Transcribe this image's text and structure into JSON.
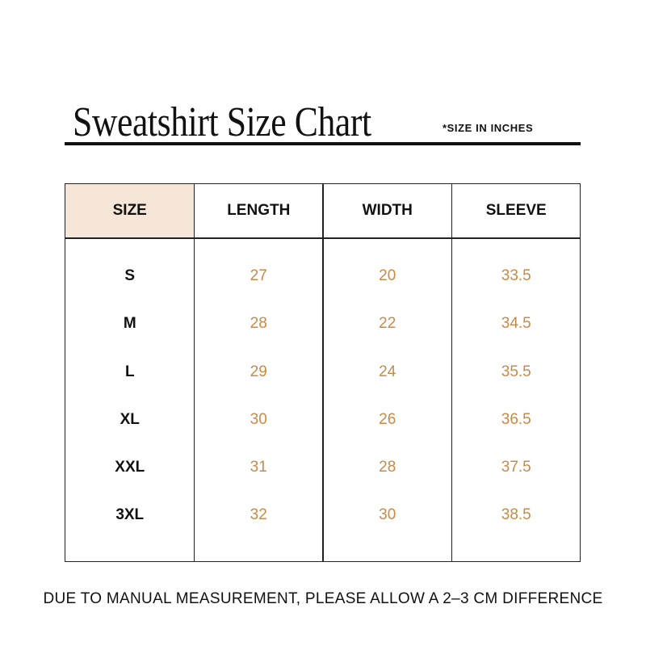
{
  "header": {
    "title": "Sweatshirt Size Chart",
    "note": "*SIZE IN INCHES"
  },
  "table": {
    "columns": [
      "SIZE",
      "LENGTH",
      "WIDTH",
      "SLEEVE"
    ],
    "rows": [
      [
        "S",
        "27",
        "20",
        "33.5"
      ],
      [
        "M",
        "28",
        "22",
        "34.5"
      ],
      [
        "L",
        "29",
        "24",
        "35.5"
      ],
      [
        "XL",
        "30",
        "26",
        "36.5"
      ],
      [
        "XXL",
        "31",
        "28",
        "37.5"
      ],
      [
        "3XL",
        "32",
        "30",
        "38.5"
      ]
    ]
  },
  "footer": "DUE TO MANUAL MEASUREMENT, PLEASE ALLOW A 2–3 CM DIFFERENCE"
}
